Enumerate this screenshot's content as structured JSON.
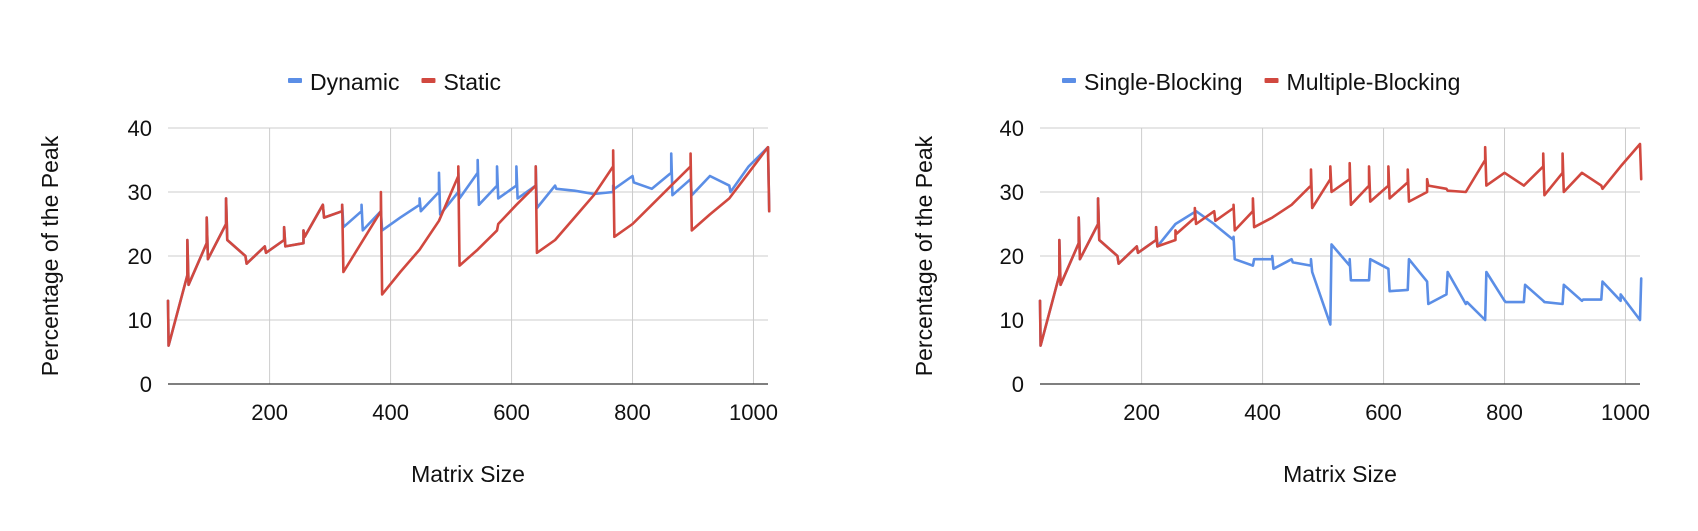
{
  "colors": {
    "blue": "#5b8ee6",
    "red": "#d1483f"
  },
  "chart_data": [
    {
      "type": "line",
      "title": "",
      "xlabel": "Matrix Size",
      "ylabel": "Percentage of the Peak",
      "xlim": [
        32,
        1024
      ],
      "ylim": [
        0,
        40
      ],
      "xticks": [
        200,
        400,
        600,
        800,
        1000
      ],
      "yticks": [
        0,
        10,
        20,
        30,
        40
      ],
      "grid": true,
      "legend_position": "top",
      "series": [
        {
          "name": "Dynamic",
          "color": "#5b8ee6",
          "points": [
            [
              32,
              13
            ],
            [
              33,
              6
            ],
            [
              64,
              17
            ],
            [
              64,
              22.5
            ],
            [
              66,
              15.5
            ],
            [
              96,
              22
            ],
            [
              96,
              26
            ],
            [
              98,
              19.5
            ],
            [
              128,
              25
            ],
            [
              128,
              29
            ],
            [
              130,
              22.5
            ],
            [
              160,
              20
            ],
            [
              162,
              18.8
            ],
            [
              192,
              21.5
            ],
            [
              194,
              20.5
            ],
            [
              224,
              22.5
            ],
            [
              224,
              24.5
            ],
            [
              226,
              21.5
            ],
            [
              256,
              22
            ],
            [
              256,
              24
            ],
            [
              258,
              23
            ],
            [
              288,
              28
            ],
            [
              290,
              26
            ],
            [
              320,
              27
            ],
            [
              320,
              28
            ],
            [
              322,
              24.5
            ],
            [
              352,
              27
            ],
            [
              352,
              28
            ],
            [
              354,
              24
            ],
            [
              384,
              27
            ],
            [
              386,
              24
            ],
            [
              416,
              26
            ],
            [
              448,
              28
            ],
            [
              448,
              29
            ],
            [
              450,
              27
            ],
            [
              480,
              30
            ],
            [
              480,
              33
            ],
            [
              482,
              26.5
            ],
            [
              512,
              30
            ],
            [
              512,
              33
            ],
            [
              514,
              29
            ],
            [
              544,
              33
            ],
            [
              544,
              35
            ],
            [
              546,
              28
            ],
            [
              576,
              31
            ],
            [
              576,
              34
            ],
            [
              578,
              29
            ],
            [
              608,
              31
            ],
            [
              608,
              34
            ],
            [
              610,
              29
            ],
            [
              640,
              31
            ],
            [
              640,
              34
            ],
            [
              642,
              27.5
            ],
            [
              672,
              31
            ],
            [
              674,
              30.5
            ],
            [
              704,
              30.2
            ],
            [
              736,
              29.7
            ],
            [
              768,
              30
            ],
            [
              768,
              31
            ],
            [
              770,
              30.5
            ],
            [
              800,
              32.5
            ],
            [
              802,
              31.5
            ],
            [
              832,
              30.5
            ],
            [
              864,
              33
            ],
            [
              864,
              36
            ],
            [
              866,
              29.5
            ],
            [
              896,
              32
            ],
            [
              898,
              29.5
            ],
            [
              928,
              32.5
            ],
            [
              960,
              31
            ],
            [
              962,
              30
            ],
            [
              992,
              34
            ],
            [
              1024,
              37
            ],
            [
              1026,
              27
            ]
          ]
        },
        {
          "name": "Static",
          "color": "#d1483f",
          "points": [
            [
              32,
              13
            ],
            [
              33,
              6
            ],
            [
              64,
              17
            ],
            [
              64,
              22.5
            ],
            [
              66,
              15.5
            ],
            [
              96,
              22
            ],
            [
              96,
              26
            ],
            [
              98,
              19.5
            ],
            [
              128,
              25
            ],
            [
              128,
              29
            ],
            [
              130,
              22.5
            ],
            [
              160,
              20
            ],
            [
              162,
              18.8
            ],
            [
              192,
              21.5
            ],
            [
              194,
              20.5
            ],
            [
              224,
              22.5
            ],
            [
              224,
              24.5
            ],
            [
              226,
              21.5
            ],
            [
              256,
              22
            ],
            [
              256,
              24
            ],
            [
              258,
              23
            ],
            [
              288,
              28
            ],
            [
              290,
              26
            ],
            [
              320,
              27
            ],
            [
              320,
              28
            ],
            [
              322,
              17.5
            ],
            [
              384,
              27
            ],
            [
              384,
              30
            ],
            [
              386,
              14
            ],
            [
              416,
              17.5
            ],
            [
              448,
              21
            ],
            [
              480,
              25.5
            ],
            [
              512,
              32.5
            ],
            [
              512,
              34
            ],
            [
              514,
              18.5
            ],
            [
              544,
              21
            ],
            [
              576,
              24
            ],
            [
              578,
              25
            ],
            [
              608,
              28
            ],
            [
              640,
              31
            ],
            [
              640,
              34
            ],
            [
              642,
              20.5
            ],
            [
              672,
              22.5
            ],
            [
              704,
              26
            ],
            [
              736,
              29.5
            ],
            [
              768,
              34
            ],
            [
              768,
              36.5
            ],
            [
              770,
              23
            ],
            [
              800,
              25
            ],
            [
              832,
              28
            ],
            [
              864,
              31
            ],
            [
              896,
              34
            ],
            [
              896,
              36
            ],
            [
              898,
              24
            ],
            [
              928,
              26.5
            ],
            [
              960,
              29
            ],
            [
              992,
              33
            ],
            [
              1024,
              37
            ],
            [
              1026,
              27
            ]
          ]
        }
      ]
    },
    {
      "type": "line",
      "title": "",
      "xlabel": "Matrix Size",
      "ylabel": "Percentage of the Peak",
      "xlim": [
        32,
        1024
      ],
      "ylim": [
        0,
        40
      ],
      "xticks": [
        200,
        400,
        600,
        800,
        1000
      ],
      "yticks": [
        0,
        10,
        20,
        30,
        40
      ],
      "grid": true,
      "legend_position": "top",
      "series": [
        {
          "name": "Single-Blocking",
          "color": "#5b8ee6",
          "points": [
            [
              32,
              13
            ],
            [
              33,
              6
            ],
            [
              64,
              17
            ],
            [
              64,
              22.5
            ],
            [
              66,
              15.5
            ],
            [
              96,
              22
            ],
            [
              96,
              26
            ],
            [
              98,
              19.5
            ],
            [
              128,
              25
            ],
            [
              128,
              29
            ],
            [
              130,
              22.5
            ],
            [
              160,
              20
            ],
            [
              162,
              18.8
            ],
            [
              192,
              21.5
            ],
            [
              194,
              20.5
            ],
            [
              224,
              22.5
            ],
            [
              224,
              24.5
            ],
            [
              226,
              21.5
            ],
            [
              256,
              25
            ],
            [
              290,
              27
            ],
            [
              320,
              25
            ],
            [
              322,
              24.8
            ],
            [
              352,
              22.5
            ],
            [
              352,
              23
            ],
            [
              354,
              19.5
            ],
            [
              384,
              18.5
            ],
            [
              386,
              19.5
            ],
            [
              416,
              19.5
            ],
            [
              416,
              20
            ],
            [
              418,
              18
            ],
            [
              448,
              19.5
            ],
            [
              450,
              19
            ],
            [
              480,
              18.5
            ],
            [
              480,
              19.5
            ],
            [
              482,
              17.5
            ],
            [
              512,
              9.3
            ],
            [
              514,
              21.8
            ],
            [
              544,
              18.5
            ],
            [
              544,
              19.5
            ],
            [
              546,
              16.2
            ],
            [
              576,
              16.2
            ],
            [
              578,
              19.5
            ],
            [
              608,
              18
            ],
            [
              610,
              14.5
            ],
            [
              640,
              14.7
            ],
            [
              642,
              19.5
            ],
            [
              672,
              16
            ],
            [
              674,
              12.5
            ],
            [
              704,
              14
            ],
            [
              706,
              17.5
            ],
            [
              736,
              12.5
            ],
            [
              738,
              12.8
            ],
            [
              768,
              10
            ],
            [
              770,
              17.5
            ],
            [
              800,
              13
            ],
            [
              802,
              12.8
            ],
            [
              832,
              12.8
            ],
            [
              834,
              15.5
            ],
            [
              864,
              13
            ],
            [
              866,
              12.8
            ],
            [
              896,
              12.5
            ],
            [
              898,
              15.5
            ],
            [
              928,
              13
            ],
            [
              930,
              13.2
            ],
            [
              960,
              13.2
            ],
            [
              962,
              16
            ],
            [
              992,
              13
            ],
            [
              992,
              14
            ],
            [
              1024,
              10
            ],
            [
              1026,
              16.5
            ]
          ]
        },
        {
          "name": "Multiple-Blocking",
          "color": "#d1483f",
          "points": [
            [
              32,
              13
            ],
            [
              33,
              6
            ],
            [
              64,
              17
            ],
            [
              64,
              22.5
            ],
            [
              66,
              15.5
            ],
            [
              96,
              22
            ],
            [
              96,
              26
            ],
            [
              98,
              19.5
            ],
            [
              128,
              25
            ],
            [
              128,
              29
            ],
            [
              130,
              22.5
            ],
            [
              160,
              20
            ],
            [
              162,
              18.8
            ],
            [
              192,
              21.5
            ],
            [
              194,
              20.5
            ],
            [
              224,
              22.5
            ],
            [
              224,
              24.5
            ],
            [
              226,
              21.5
            ],
            [
              256,
              22.5
            ],
            [
              256,
              24
            ],
            [
              258,
              23.5
            ],
            [
              288,
              26
            ],
            [
              288,
              27.5
            ],
            [
              290,
              25
            ],
            [
              320,
              27
            ],
            [
              322,
              25.5
            ],
            [
              352,
              27.5
            ],
            [
              352,
              28
            ],
            [
              354,
              24
            ],
            [
              384,
              27
            ],
            [
              384,
              29
            ],
            [
              386,
              24.5
            ],
            [
              416,
              26
            ],
            [
              448,
              28
            ],
            [
              480,
              31
            ],
            [
              480,
              33.5
            ],
            [
              482,
              27.5
            ],
            [
              512,
              32
            ],
            [
              512,
              34
            ],
            [
              514,
              30
            ],
            [
              544,
              32
            ],
            [
              544,
              34.5
            ],
            [
              546,
              28
            ],
            [
              576,
              31
            ],
            [
              576,
              34
            ],
            [
              578,
              28.5
            ],
            [
              608,
              31
            ],
            [
              608,
              34
            ],
            [
              610,
              29
            ],
            [
              640,
              31.5
            ],
            [
              640,
              33.5
            ],
            [
              642,
              28.5
            ],
            [
              672,
              30
            ],
            [
              672,
              32
            ],
            [
              674,
              31
            ],
            [
              704,
              30.5
            ],
            [
              706,
              30.2
            ],
            [
              736,
              30
            ],
            [
              768,
              35
            ],
            [
              768,
              37
            ],
            [
              770,
              31
            ],
            [
              800,
              33
            ],
            [
              832,
              31
            ],
            [
              864,
              34
            ],
            [
              864,
              36
            ],
            [
              866,
              29.5
            ],
            [
              896,
              33
            ],
            [
              896,
              36
            ],
            [
              898,
              30
            ],
            [
              928,
              33
            ],
            [
              960,
              31
            ],
            [
              962,
              30.5
            ],
            [
              992,
              34
            ],
            [
              1024,
              37.5
            ],
            [
              1026,
              32
            ]
          ]
        }
      ]
    }
  ]
}
